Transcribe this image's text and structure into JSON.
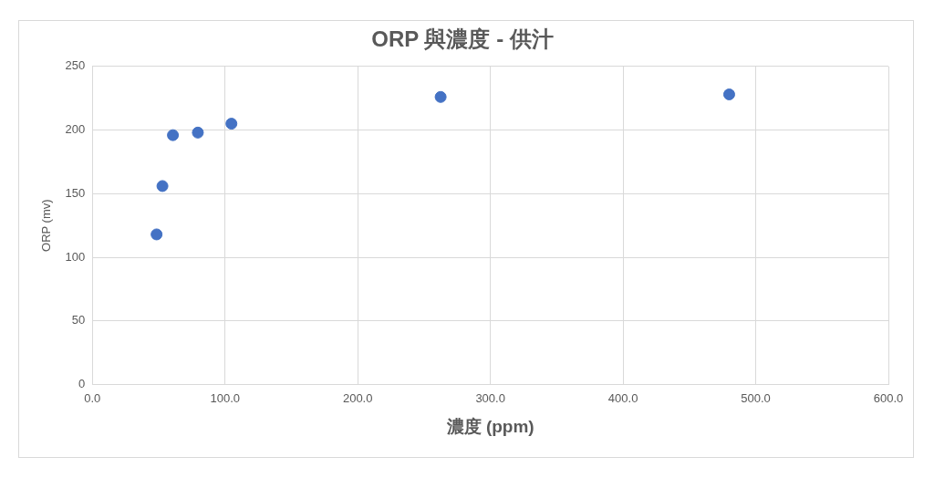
{
  "chart_data": {
    "type": "scatter",
    "title": "ORP 與濃度 - 供汁",
    "xlabel": "濃度 (ppm)",
    "ylabel": "ORP (mv)",
    "x": [
      48.4,
      52.8,
      60.7,
      79.5,
      104.8,
      262.5,
      480
    ],
    "values": [
      118,
      156,
      196,
      198,
      205,
      226,
      228
    ],
    "color": "#4472c4",
    "marker": "circle",
    "xlim": [
      0,
      600
    ],
    "xticks": [
      {
        "value": 0,
        "label": "0.0"
      },
      {
        "value": 100,
        "label": "100.0"
      },
      {
        "value": 200,
        "label": "200.0"
      },
      {
        "value": 300,
        "label": "300.0"
      },
      {
        "value": 400,
        "label": "400.0"
      },
      {
        "value": 500,
        "label": "500.0"
      },
      {
        "value": 600,
        "label": "600.0"
      }
    ],
    "ylim": [
      0,
      250
    ],
    "yticks": [
      0,
      50,
      100,
      150,
      200,
      250
    ],
    "grid": true
  }
}
